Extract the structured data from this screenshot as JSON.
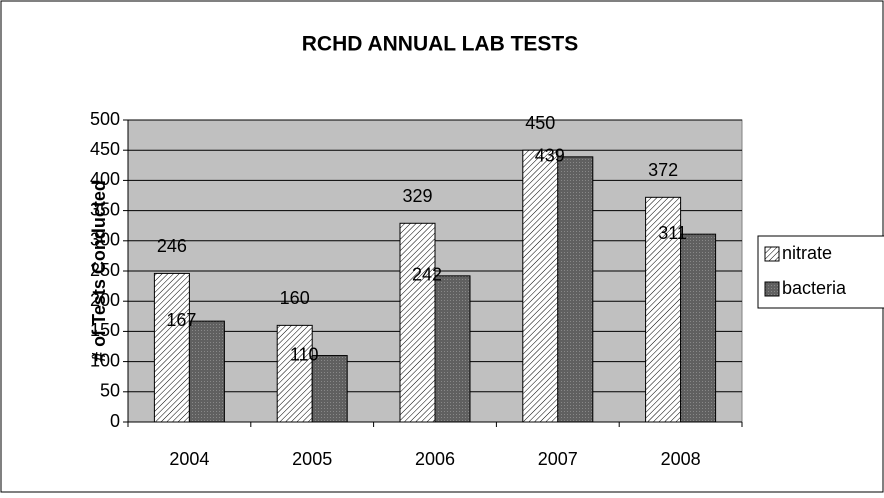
{
  "chart_data": {
    "type": "bar",
    "title": "RCHD ANNUAL LAB TESTS",
    "y_label": "# of Tests Conducted",
    "categories": [
      "2004",
      "2005",
      "2006",
      "2007",
      "2008"
    ],
    "series": [
      {
        "name": "nitrate",
        "color": "#ffffff",
        "values": [
          246,
          160,
          329,
          450,
          372
        ]
      },
      {
        "name": "bacteria",
        "color": "#606060",
        "values": [
          167,
          110,
          242,
          439,
          311
        ]
      }
    ],
    "ylim": [
      0,
      500
    ],
    "yticks": [
      0,
      50,
      100,
      150,
      200,
      250,
      300,
      350,
      400,
      450,
      500
    ],
    "grid": true,
    "legend": "right"
  }
}
